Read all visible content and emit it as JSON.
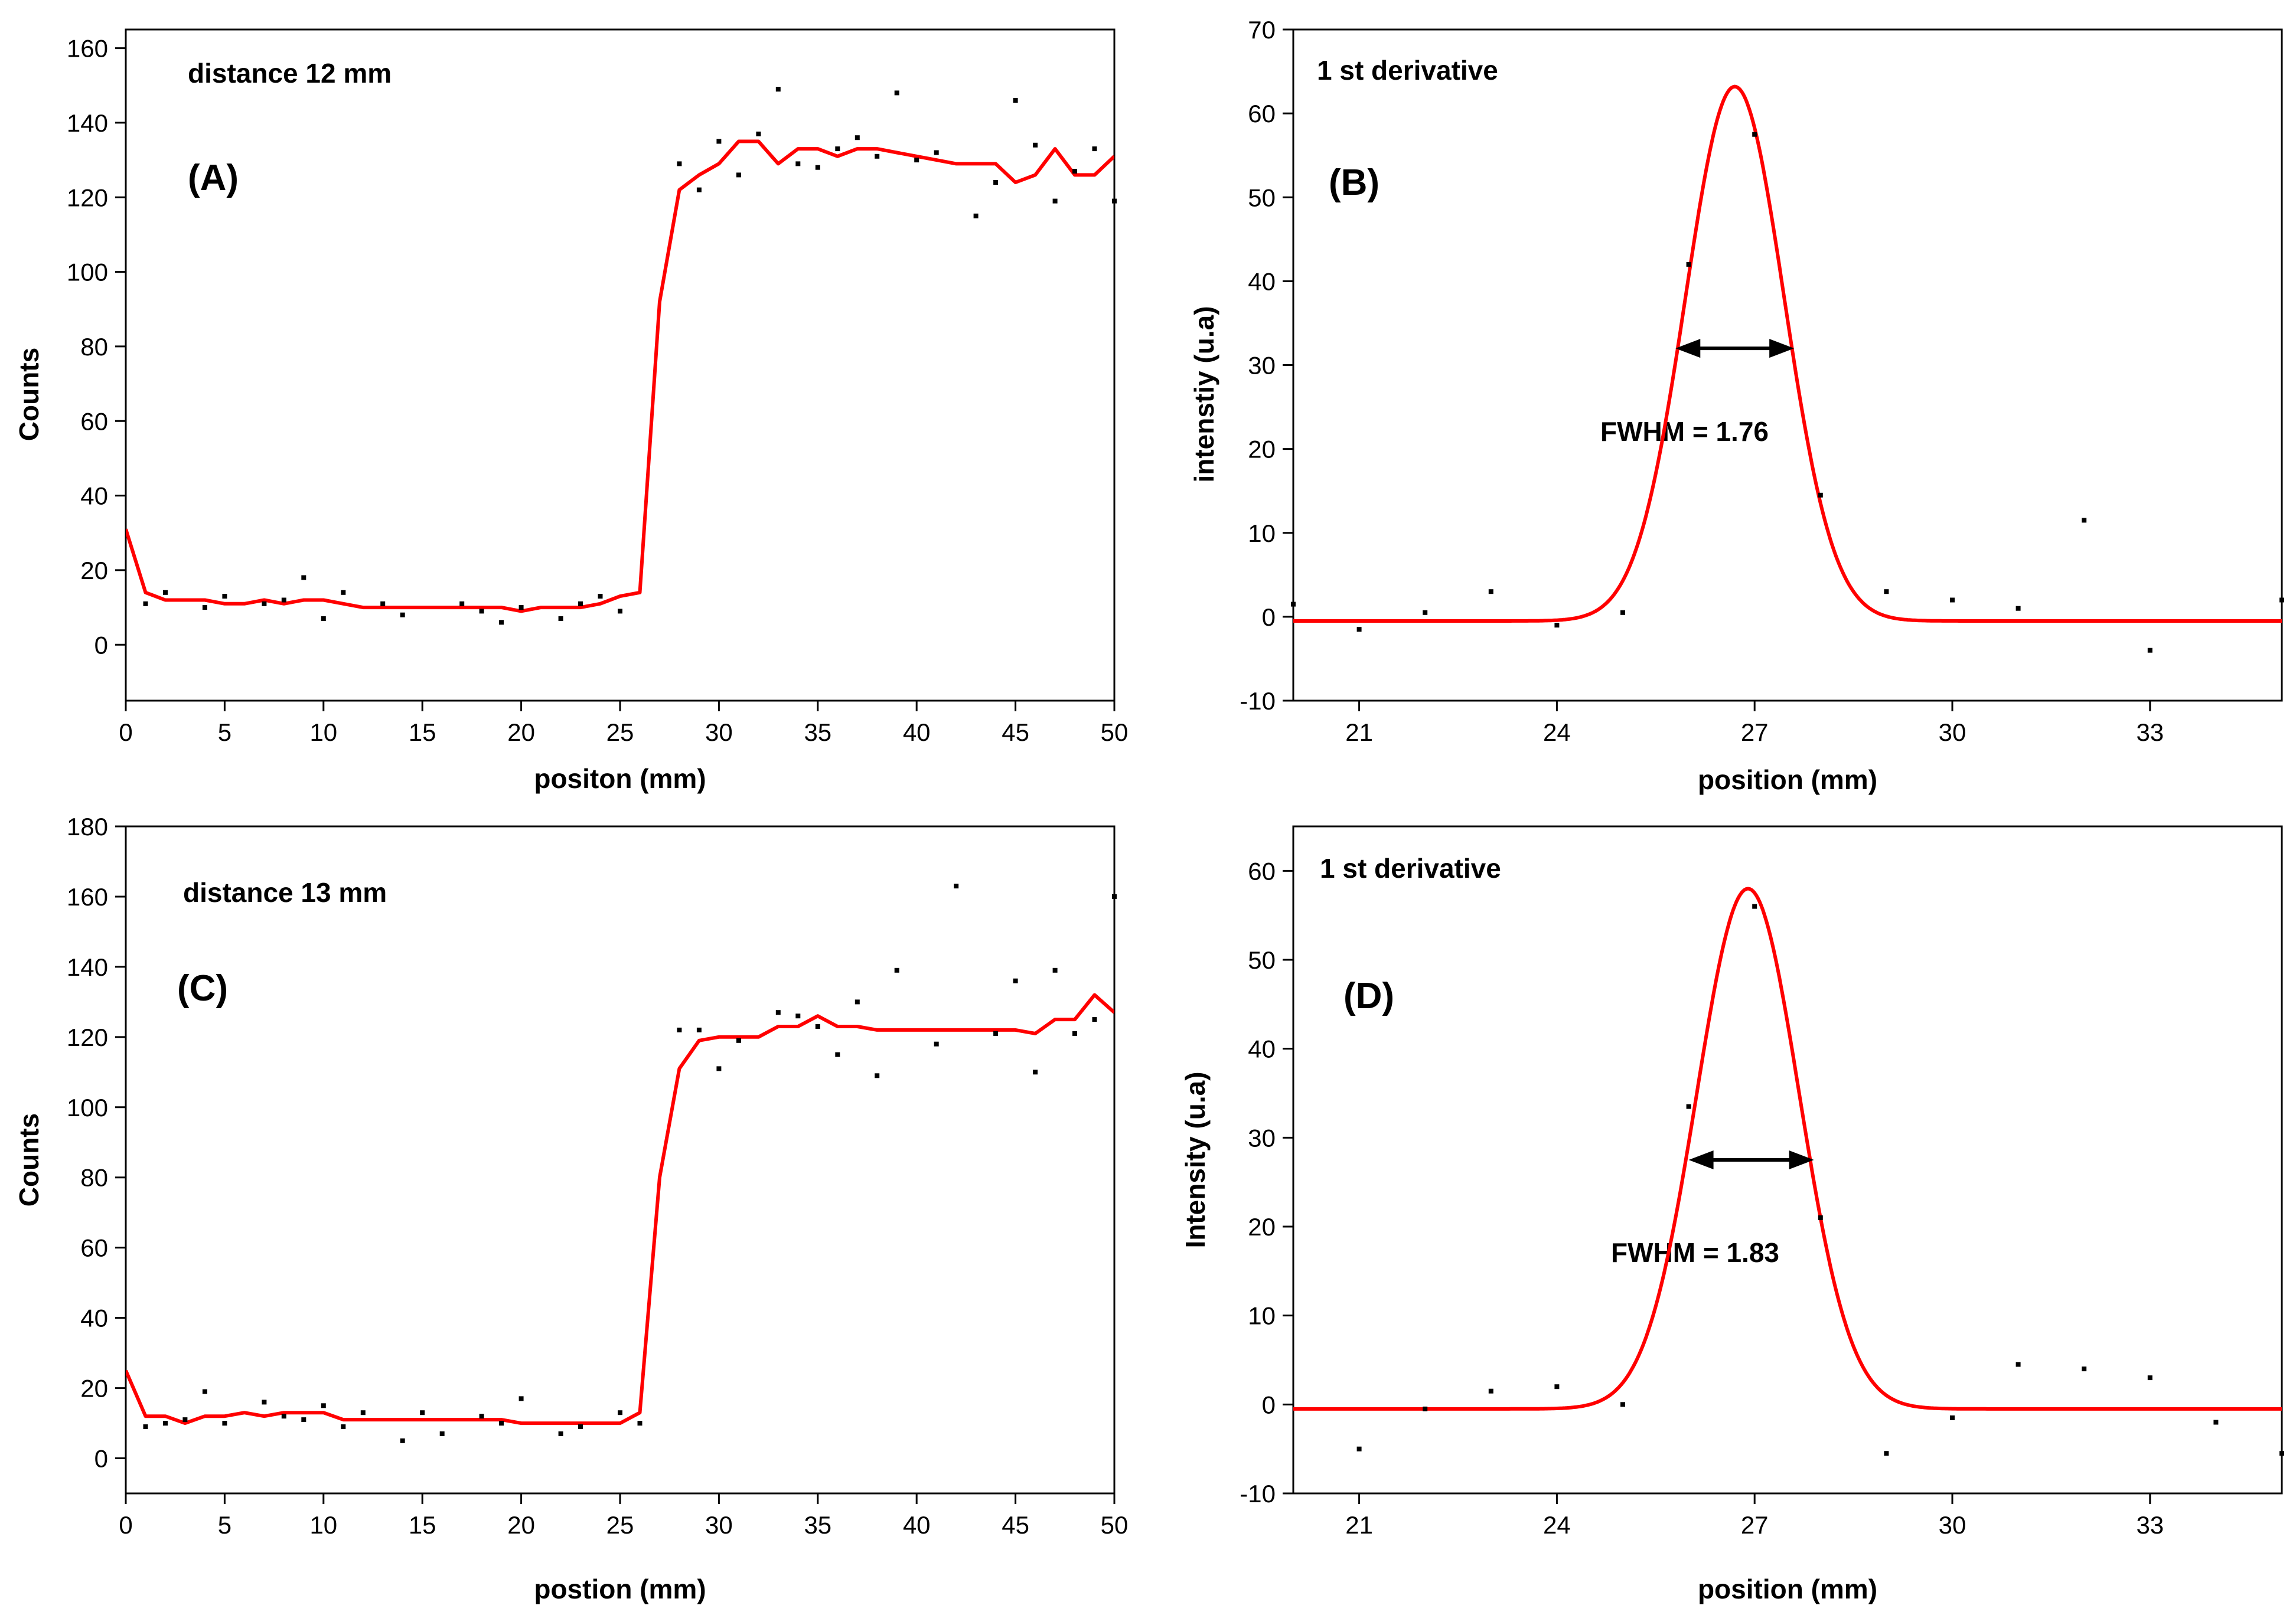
{
  "colors": {
    "fit": "#ff0000",
    "points": "#000000",
    "axes": "#000000",
    "arrow": "#000000"
  },
  "chart_data": [
    {
      "id": "A",
      "type": "line",
      "title": "distance 12 mm",
      "panel_label": "(A)",
      "xlabel": "positon (mm)",
      "ylabel": "Counts",
      "xlim": [
        0,
        50
      ],
      "ylim": [
        -15,
        165
      ],
      "xticks": [
        0,
        5,
        10,
        15,
        20,
        25,
        30,
        35,
        40,
        45,
        50
      ],
      "yticks": [
        0,
        20,
        40,
        60,
        80,
        100,
        120,
        140,
        160
      ],
      "series": [
        {
          "name": "fit",
          "style": "line",
          "x": [
            0,
            1,
            2,
            3,
            4,
            5,
            6,
            7,
            8,
            9,
            10,
            11,
            12,
            13,
            14,
            15,
            16,
            17,
            18,
            19,
            20,
            21,
            22,
            23,
            24,
            25,
            26,
            27,
            28,
            29,
            30,
            31,
            32,
            33,
            34,
            35,
            36,
            37,
            38,
            39,
            40,
            41,
            42,
            43,
            44,
            45,
            46,
            47,
            48,
            49,
            50
          ],
          "y": [
            31,
            14,
            12,
            12,
            12,
            11,
            11,
            12,
            11,
            12,
            12,
            11,
            10,
            10,
            10,
            10,
            10,
            10,
            10,
            10,
            9,
            10,
            10,
            10,
            11,
            13,
            14,
            92,
            122,
            126,
            129,
            135,
            135,
            129,
            133,
            133,
            131,
            133,
            133,
            132,
            131,
            130,
            129,
            129,
            129,
            124,
            126,
            133,
            126,
            126,
            131
          ]
        },
        {
          "name": "data",
          "style": "points",
          "x": [
            1,
            2,
            4,
            5,
            7,
            8,
            9,
            10,
            11,
            13,
            14,
            17,
            18,
            19,
            20,
            22,
            23,
            24,
            25,
            28,
            29,
            30,
            31,
            32,
            33,
            34,
            35,
            36,
            37,
            38,
            39,
            40,
            41,
            43,
            44,
            45,
            46,
            47,
            48,
            49,
            50
          ],
          "y": [
            11,
            14,
            10,
            13,
            11,
            12,
            18,
            7,
            14,
            11,
            8,
            11,
            9,
            6,
            10,
            7,
            11,
            13,
            9,
            129,
            122,
            135,
            126,
            137,
            149,
            129,
            128,
            133,
            136,
            131,
            148,
            130,
            132,
            115,
            124,
            146,
            134,
            119,
            127,
            133,
            119
          ]
        }
      ]
    },
    {
      "id": "B",
      "type": "line",
      "title": "1 st derivative",
      "panel_label": "(B)",
      "xlabel": "position (mm)",
      "ylabel": "intenstiy (u.a)",
      "xlim": [
        20,
        35
      ],
      "ylim": [
        -10,
        70
      ],
      "xticks": [
        21,
        24,
        27,
        30,
        33
      ],
      "yticks": [
        -10,
        0,
        10,
        20,
        30,
        40,
        50,
        60,
        70
      ],
      "annotation": "FWHM = 1.76",
      "fwhm_arrow": {
        "x1": 25.8,
        "x2": 27.6,
        "y": 32
      },
      "gaussian": {
        "center": 26.7,
        "amplitude": 63.7,
        "fwhm": 1.76,
        "baseline": -0.5
      },
      "series": [
        {
          "name": "data",
          "style": "points",
          "x": [
            20,
            21,
            22,
            23,
            24,
            25,
            26,
            27,
            28,
            29,
            30,
            31,
            32,
            33,
            35
          ],
          "y": [
            1.5,
            -1.5,
            0.5,
            3,
            -1,
            0.5,
            42,
            57.5,
            14.5,
            3,
            2,
            1,
            11.5,
            -4,
            2
          ]
        }
      ]
    },
    {
      "id": "C",
      "type": "line",
      "title": "distance 13 mm",
      "panel_label": "(C)",
      "xlabel": "postion (mm)",
      "ylabel": "Counts",
      "xlim": [
        0,
        50
      ],
      "ylim": [
        -10,
        180
      ],
      "xticks": [
        0,
        5,
        10,
        15,
        20,
        25,
        30,
        35,
        40,
        45,
        50
      ],
      "yticks": [
        0,
        20,
        40,
        60,
        80,
        100,
        120,
        140,
        160,
        180
      ],
      "series": [
        {
          "name": "fit",
          "style": "line",
          "x": [
            0,
            1,
            2,
            3,
            4,
            5,
            6,
            7,
            8,
            9,
            10,
            11,
            12,
            13,
            14,
            15,
            16,
            17,
            18,
            19,
            20,
            21,
            22,
            23,
            24,
            25,
            26,
            27,
            28,
            29,
            30,
            31,
            32,
            33,
            34,
            35,
            36,
            37,
            38,
            39,
            40,
            41,
            42,
            43,
            44,
            45,
            46,
            47,
            48,
            49,
            50
          ],
          "y": [
            25,
            12,
            12,
            10,
            12,
            12,
            13,
            12,
            13,
            13,
            13,
            11,
            11,
            11,
            11,
            11,
            11,
            11,
            11,
            11,
            10,
            10,
            10,
            10,
            10,
            10,
            13,
            80,
            111,
            119,
            120,
            120,
            120,
            123,
            123,
            126,
            123,
            123,
            122,
            122,
            122,
            122,
            122,
            122,
            122,
            122,
            121,
            125,
            125,
            132,
            127
          ]
        },
        {
          "name": "data",
          "style": "points",
          "x": [
            1,
            2,
            3,
            4,
            5,
            7,
            8,
            9,
            10,
            11,
            12,
            14,
            15,
            16,
            18,
            19,
            20,
            22,
            23,
            25,
            26,
            28,
            29,
            30,
            31,
            33,
            34,
            35,
            36,
            37,
            38,
            39,
            41,
            42,
            44,
            45,
            46,
            47,
            48,
            49,
            50
          ],
          "y": [
            9,
            10,
            11,
            19,
            10,
            16,
            12,
            11,
            15,
            9,
            13,
            5,
            13,
            7,
            12,
            10,
            17,
            7,
            9,
            13,
            10,
            122,
            122,
            111,
            119,
            127,
            126,
            123,
            115,
            130,
            109,
            139,
            118,
            163,
            121,
            136,
            110,
            139,
            121,
            125,
            160
          ]
        }
      ]
    },
    {
      "id": "D",
      "type": "line",
      "title": "1 st derivative",
      "panel_label": "(D)",
      "xlabel": "position (mm)",
      "ylabel": "Intensity (u.a)",
      "xlim": [
        20,
        35
      ],
      "ylim": [
        -10,
        65
      ],
      "xticks": [
        21,
        24,
        27,
        30,
        33
      ],
      "yticks": [
        -10,
        0,
        10,
        20,
        30,
        40,
        50,
        60
      ],
      "annotation": "FWHM = 1.83",
      "fwhm_arrow": {
        "x1": 26,
        "x2": 27.9,
        "y": 27.5
      },
      "gaussian": {
        "center": 26.9,
        "amplitude": 58.5,
        "fwhm": 1.83,
        "baseline": -0.5
      },
      "series": [
        {
          "name": "data",
          "style": "points",
          "x": [
            21,
            22,
            23,
            24,
            25,
            26,
            27,
            28,
            29,
            30,
            31,
            32,
            33,
            34,
            35
          ],
          "y": [
            -5,
            -0.5,
            1.5,
            2,
            0,
            33.5,
            56,
            21,
            -5.5,
            -1.5,
            4.5,
            4,
            3,
            -2,
            -5.5
          ]
        }
      ]
    }
  ]
}
